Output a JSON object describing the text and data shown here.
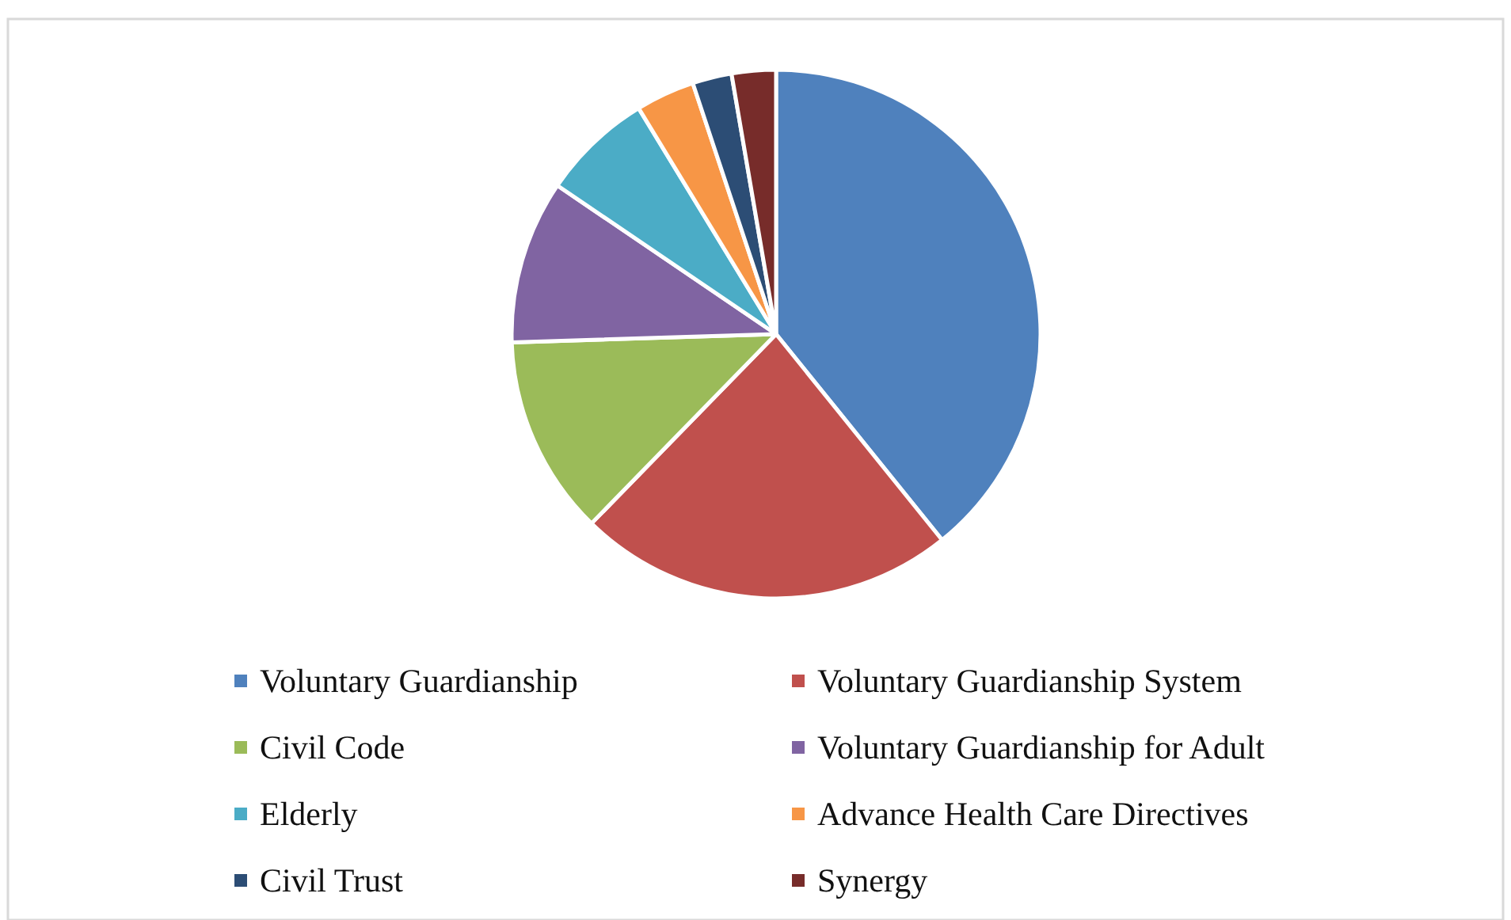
{
  "chart_data": {
    "type": "pie",
    "categories": [
      "Voluntary Guardianship",
      "Voluntary Guardianship System",
      "Civil Code",
      "Voluntary Guardianship for Adult",
      "Elderly",
      "Advance Health Care Directives",
      "Civil Trust",
      "Synergy"
    ],
    "values": [
      39.2,
      23.1,
      12.2,
      10,
      6.8,
      3.6,
      2.4,
      2.7
    ],
    "colors": [
      "#4f81bd",
      "#c0504d",
      "#9bbb59",
      "#8064a2",
      "#4bacc6",
      "#f79646",
      "#2c4d75",
      "#772c2a"
    ],
    "legend": "bottom"
  }
}
